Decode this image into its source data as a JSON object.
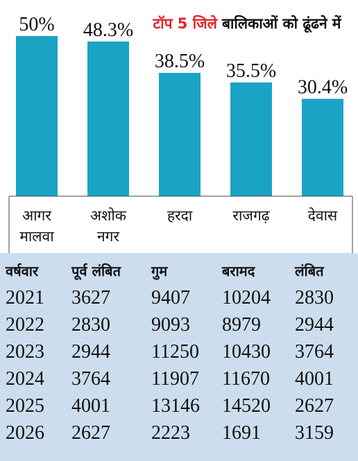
{
  "colors": {
    "bar": "#1ba3c6",
    "title_accent": "#e3242b",
    "table_bg": "#ccdeed"
  },
  "chart_data": {
    "type": "bar",
    "title_accent": "टॉप 5 जिले",
    "title_rest": "बालिकाओं को ढूंढने में",
    "categories": [
      [
        "आगर",
        "मालवा"
      ],
      [
        "अशोक",
        "नगर"
      ],
      [
        "हरदा"
      ],
      [
        "राजगढ़"
      ],
      [
        "देवास"
      ]
    ],
    "values": [
      50,
      48.3,
      38.5,
      35.5,
      30.4
    ],
    "value_labels": [
      "50%",
      "48.3%",
      "38.5%",
      "35.5%",
      "30.4%"
    ],
    "ylim": [
      0,
      50
    ],
    "grid": false
  },
  "table": {
    "headers": [
      "वर्षवार",
      "पूर्व लंबित",
      "गुम",
      "बरामद",
      "लंबित"
    ],
    "rows": [
      [
        "2021",
        "3627",
        "9407",
        "10204",
        "2830"
      ],
      [
        "2022",
        "2830",
        "9093",
        "8979",
        "2944"
      ],
      [
        "2023",
        "2944",
        "11250",
        "10430",
        "3764"
      ],
      [
        "2024",
        "3764",
        "11907",
        "11670",
        "4001"
      ],
      [
        "2025",
        "4001",
        "13146",
        "14520",
        "2627"
      ],
      [
        "2026",
        "2627",
        "2223",
        "1691",
        "3159"
      ]
    ]
  }
}
